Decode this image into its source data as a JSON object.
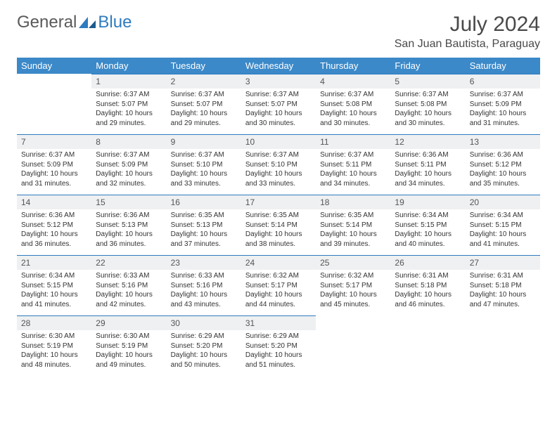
{
  "logo": {
    "general": "General",
    "blue": "Blue"
  },
  "title": "July 2024",
  "location": "San Juan Bautista, Paraguay",
  "colors": {
    "header_bg": "#3b89c9",
    "header_text": "#ffffff",
    "daynum_bg": "#eef0f1",
    "rule": "#2f7bbf",
    "text": "#333333",
    "title_text": "#4a4a4a"
  },
  "weekdays": [
    "Sunday",
    "Monday",
    "Tuesday",
    "Wednesday",
    "Thursday",
    "Friday",
    "Saturday"
  ],
  "start_offset": 1,
  "days": [
    {
      "n": 1,
      "sr": "6:37 AM",
      "ss": "5:07 PM",
      "dl": "10 hours and 29 minutes."
    },
    {
      "n": 2,
      "sr": "6:37 AM",
      "ss": "5:07 PM",
      "dl": "10 hours and 29 minutes."
    },
    {
      "n": 3,
      "sr": "6:37 AM",
      "ss": "5:07 PM",
      "dl": "10 hours and 30 minutes."
    },
    {
      "n": 4,
      "sr": "6:37 AM",
      "ss": "5:08 PM",
      "dl": "10 hours and 30 minutes."
    },
    {
      "n": 5,
      "sr": "6:37 AM",
      "ss": "5:08 PM",
      "dl": "10 hours and 30 minutes."
    },
    {
      "n": 6,
      "sr": "6:37 AM",
      "ss": "5:09 PM",
      "dl": "10 hours and 31 minutes."
    },
    {
      "n": 7,
      "sr": "6:37 AM",
      "ss": "5:09 PM",
      "dl": "10 hours and 31 minutes."
    },
    {
      "n": 8,
      "sr": "6:37 AM",
      "ss": "5:09 PM",
      "dl": "10 hours and 32 minutes."
    },
    {
      "n": 9,
      "sr": "6:37 AM",
      "ss": "5:10 PM",
      "dl": "10 hours and 33 minutes."
    },
    {
      "n": 10,
      "sr": "6:37 AM",
      "ss": "5:10 PM",
      "dl": "10 hours and 33 minutes."
    },
    {
      "n": 11,
      "sr": "6:37 AM",
      "ss": "5:11 PM",
      "dl": "10 hours and 34 minutes."
    },
    {
      "n": 12,
      "sr": "6:36 AM",
      "ss": "5:11 PM",
      "dl": "10 hours and 34 minutes."
    },
    {
      "n": 13,
      "sr": "6:36 AM",
      "ss": "5:12 PM",
      "dl": "10 hours and 35 minutes."
    },
    {
      "n": 14,
      "sr": "6:36 AM",
      "ss": "5:12 PM",
      "dl": "10 hours and 36 minutes."
    },
    {
      "n": 15,
      "sr": "6:36 AM",
      "ss": "5:13 PM",
      "dl": "10 hours and 36 minutes."
    },
    {
      "n": 16,
      "sr": "6:35 AM",
      "ss": "5:13 PM",
      "dl": "10 hours and 37 minutes."
    },
    {
      "n": 17,
      "sr": "6:35 AM",
      "ss": "5:14 PM",
      "dl": "10 hours and 38 minutes."
    },
    {
      "n": 18,
      "sr": "6:35 AM",
      "ss": "5:14 PM",
      "dl": "10 hours and 39 minutes."
    },
    {
      "n": 19,
      "sr": "6:34 AM",
      "ss": "5:15 PM",
      "dl": "10 hours and 40 minutes."
    },
    {
      "n": 20,
      "sr": "6:34 AM",
      "ss": "5:15 PM",
      "dl": "10 hours and 41 minutes."
    },
    {
      "n": 21,
      "sr": "6:34 AM",
      "ss": "5:15 PM",
      "dl": "10 hours and 41 minutes."
    },
    {
      "n": 22,
      "sr": "6:33 AM",
      "ss": "5:16 PM",
      "dl": "10 hours and 42 minutes."
    },
    {
      "n": 23,
      "sr": "6:33 AM",
      "ss": "5:16 PM",
      "dl": "10 hours and 43 minutes."
    },
    {
      "n": 24,
      "sr": "6:32 AM",
      "ss": "5:17 PM",
      "dl": "10 hours and 44 minutes."
    },
    {
      "n": 25,
      "sr": "6:32 AM",
      "ss": "5:17 PM",
      "dl": "10 hours and 45 minutes."
    },
    {
      "n": 26,
      "sr": "6:31 AM",
      "ss": "5:18 PM",
      "dl": "10 hours and 46 minutes."
    },
    {
      "n": 27,
      "sr": "6:31 AM",
      "ss": "5:18 PM",
      "dl": "10 hours and 47 minutes."
    },
    {
      "n": 28,
      "sr": "6:30 AM",
      "ss": "5:19 PM",
      "dl": "10 hours and 48 minutes."
    },
    {
      "n": 29,
      "sr": "6:30 AM",
      "ss": "5:19 PM",
      "dl": "10 hours and 49 minutes."
    },
    {
      "n": 30,
      "sr": "6:29 AM",
      "ss": "5:20 PM",
      "dl": "10 hours and 50 minutes."
    },
    {
      "n": 31,
      "sr": "6:29 AM",
      "ss": "5:20 PM",
      "dl": "10 hours and 51 minutes."
    }
  ],
  "labels": {
    "sunrise": "Sunrise:",
    "sunset": "Sunset:",
    "daylight": "Daylight:"
  }
}
